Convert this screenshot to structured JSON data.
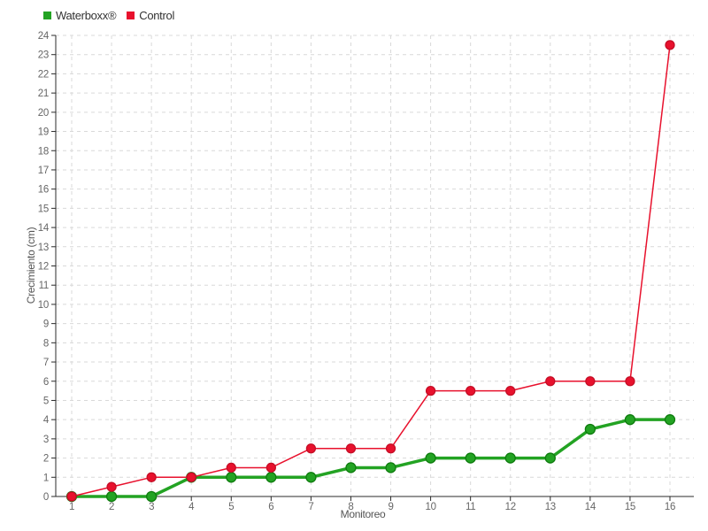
{
  "chart_data": {
    "type": "line",
    "title": "",
    "xlabel": "Monitoreo",
    "ylabel": "Crecimiento (cm)",
    "x": [
      1,
      2,
      3,
      4,
      5,
      6,
      7,
      8,
      9,
      10,
      11,
      12,
      13,
      14,
      15,
      16
    ],
    "ylim": [
      0,
      24
    ],
    "y_tick_step": 1,
    "grid": true,
    "grid_style": "dashed",
    "legend_position": "top-left",
    "series": [
      {
        "name": "Waterboxx®",
        "color": "#23a323",
        "marker_border": "#0e7c0e",
        "line_width": 3.5,
        "marker_radius": 5.5,
        "values": [
          0,
          0,
          0,
          1,
          1,
          1,
          1,
          1.5,
          1.5,
          2,
          2,
          2,
          2,
          3.5,
          4,
          4
        ]
      },
      {
        "name": "Control",
        "color": "#e8112d",
        "marker_border": "#c50e26",
        "line_width": 1.5,
        "marker_radius": 5,
        "values": [
          0,
          0.5,
          1,
          1,
          1.5,
          1.5,
          2.5,
          2.5,
          2.5,
          5.5,
          5.5,
          5.5,
          6,
          6,
          6,
          23.5
        ]
      }
    ]
  },
  "colors": {
    "background": "#ffffff",
    "grid": "#d9d9d9",
    "axis": "#2b2b2b",
    "tick_label": "#666666",
    "axis_title": "#555555",
    "legend_text": "#333333"
  }
}
